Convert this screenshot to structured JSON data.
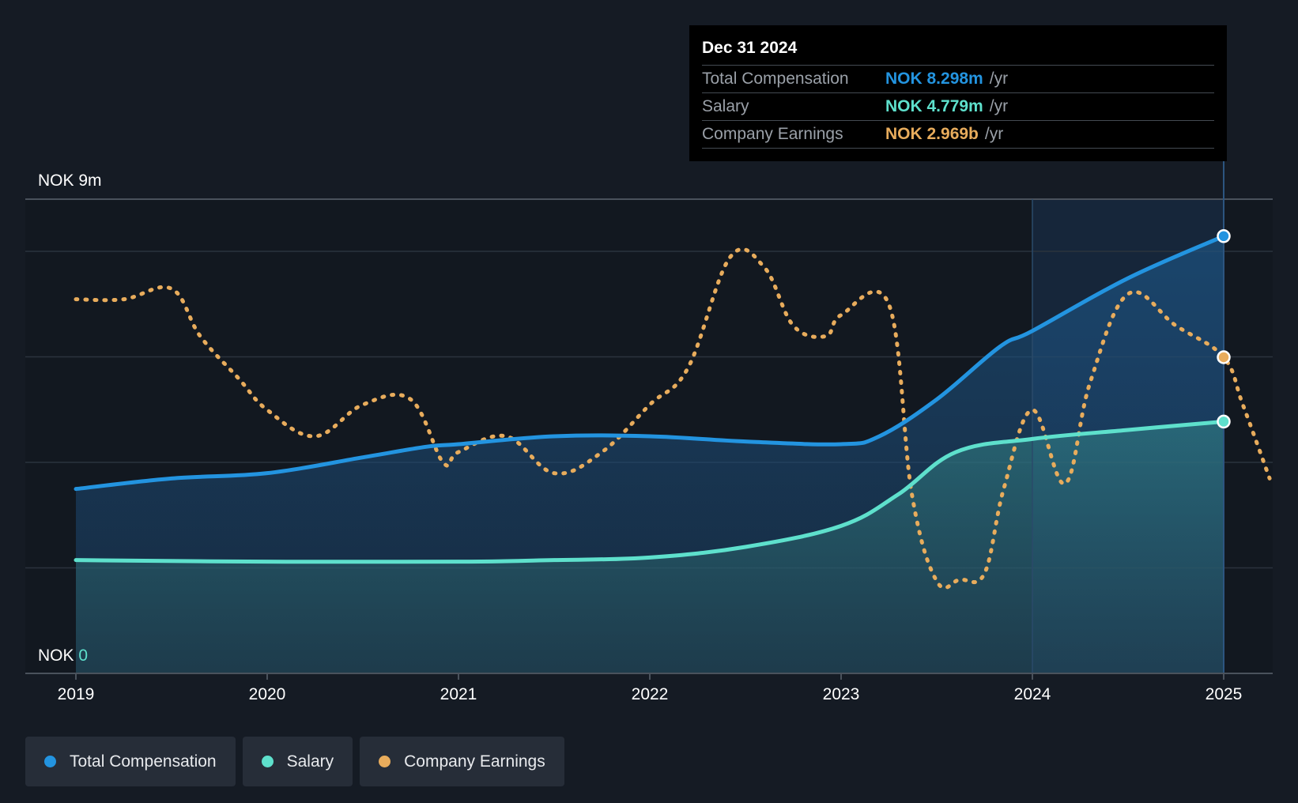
{
  "colors": {
    "total_compensation": "#2394e0",
    "salary": "#5ee0cc",
    "company_earnings": "#e8ac5c",
    "background": "#151b24",
    "grid": "#2b333d"
  },
  "tooltip": {
    "date": "Dec 31 2024",
    "rows": [
      {
        "label": "Total Compensation",
        "value": "NOK 8.298m",
        "unit": "/yr"
      },
      {
        "label": "Salary",
        "value": "NOK 4.779m",
        "unit": "/yr"
      },
      {
        "label": "Company Earnings",
        "value": "NOK 2.969b",
        "unit": "/yr"
      }
    ]
  },
  "legend": {
    "items": [
      {
        "label": "Total Compensation"
      },
      {
        "label": "Salary"
      },
      {
        "label": "Company Earnings"
      }
    ]
  },
  "chart_data": {
    "type": "area",
    "title": "",
    "y_axis": {
      "top_label": "NOK 9m",
      "bottom_prefix": "NOK",
      "bottom_value": "0",
      "ylim": [
        0,
        9
      ]
    },
    "x_axis": {
      "tick_labels": [
        "2019",
        "2020",
        "2021",
        "2022",
        "2023",
        "2024",
        "2025"
      ],
      "xlim": [
        2018.74,
        2025.24
      ]
    },
    "highlight_range": [
      2024.0,
      2025.0
    ],
    "series": [
      {
        "name": "Total Compensation",
        "unit": "NOK m",
        "x": [
          2019.0,
          2019.5,
          2020.0,
          2020.5,
          2020.83,
          2021.0,
          2021.5,
          2022.0,
          2022.5,
          2023.0,
          2023.2,
          2023.5,
          2023.83,
          2024.0,
          2024.5,
          2025.0
        ],
        "values": [
          3.5,
          3.7,
          3.8,
          4.1,
          4.3,
          4.35,
          4.5,
          4.5,
          4.4,
          4.35,
          4.5,
          5.2,
          6.2,
          6.5,
          7.5,
          8.298
        ]
      },
      {
        "name": "Salary",
        "unit": "NOK m",
        "x": [
          2019.0,
          2020.0,
          2021.0,
          2021.5,
          2022.0,
          2022.5,
          2023.0,
          2023.3,
          2023.6,
          2024.0,
          2024.5,
          2025.0
        ],
        "values": [
          2.15,
          2.12,
          2.12,
          2.15,
          2.2,
          2.4,
          2.8,
          3.4,
          4.2,
          4.45,
          4.62,
          4.779
        ]
      },
      {
        "name": "Company Earnings",
        "unit": "NOK b (relative scale)",
        "x": [
          2019.0,
          2019.25,
          2019.5,
          2019.65,
          2019.85,
          2020.0,
          2020.25,
          2020.5,
          2020.75,
          2020.92,
          2021.0,
          2021.25,
          2021.5,
          2021.75,
          2022.0,
          2022.2,
          2022.42,
          2022.6,
          2022.75,
          2022.92,
          2023.0,
          2023.25,
          2023.37,
          2023.5,
          2023.62,
          2023.75,
          2023.85,
          2024.0,
          2024.17,
          2024.3,
          2024.5,
          2024.75,
          2025.0,
          2025.1,
          2025.24
        ],
        "values": [
          7.1,
          7.1,
          7.3,
          6.4,
          5.6,
          5.0,
          4.5,
          5.1,
          5.2,
          4.0,
          4.2,
          4.5,
          3.8,
          4.2,
          5.1,
          5.8,
          7.9,
          7.7,
          6.6,
          6.4,
          6.8,
          7.0,
          3.4,
          1.75,
          1.78,
          1.9,
          3.5,
          5.0,
          3.6,
          5.5,
          7.2,
          6.6,
          6.0,
          5.1,
          3.7
        ]
      }
    ]
  }
}
